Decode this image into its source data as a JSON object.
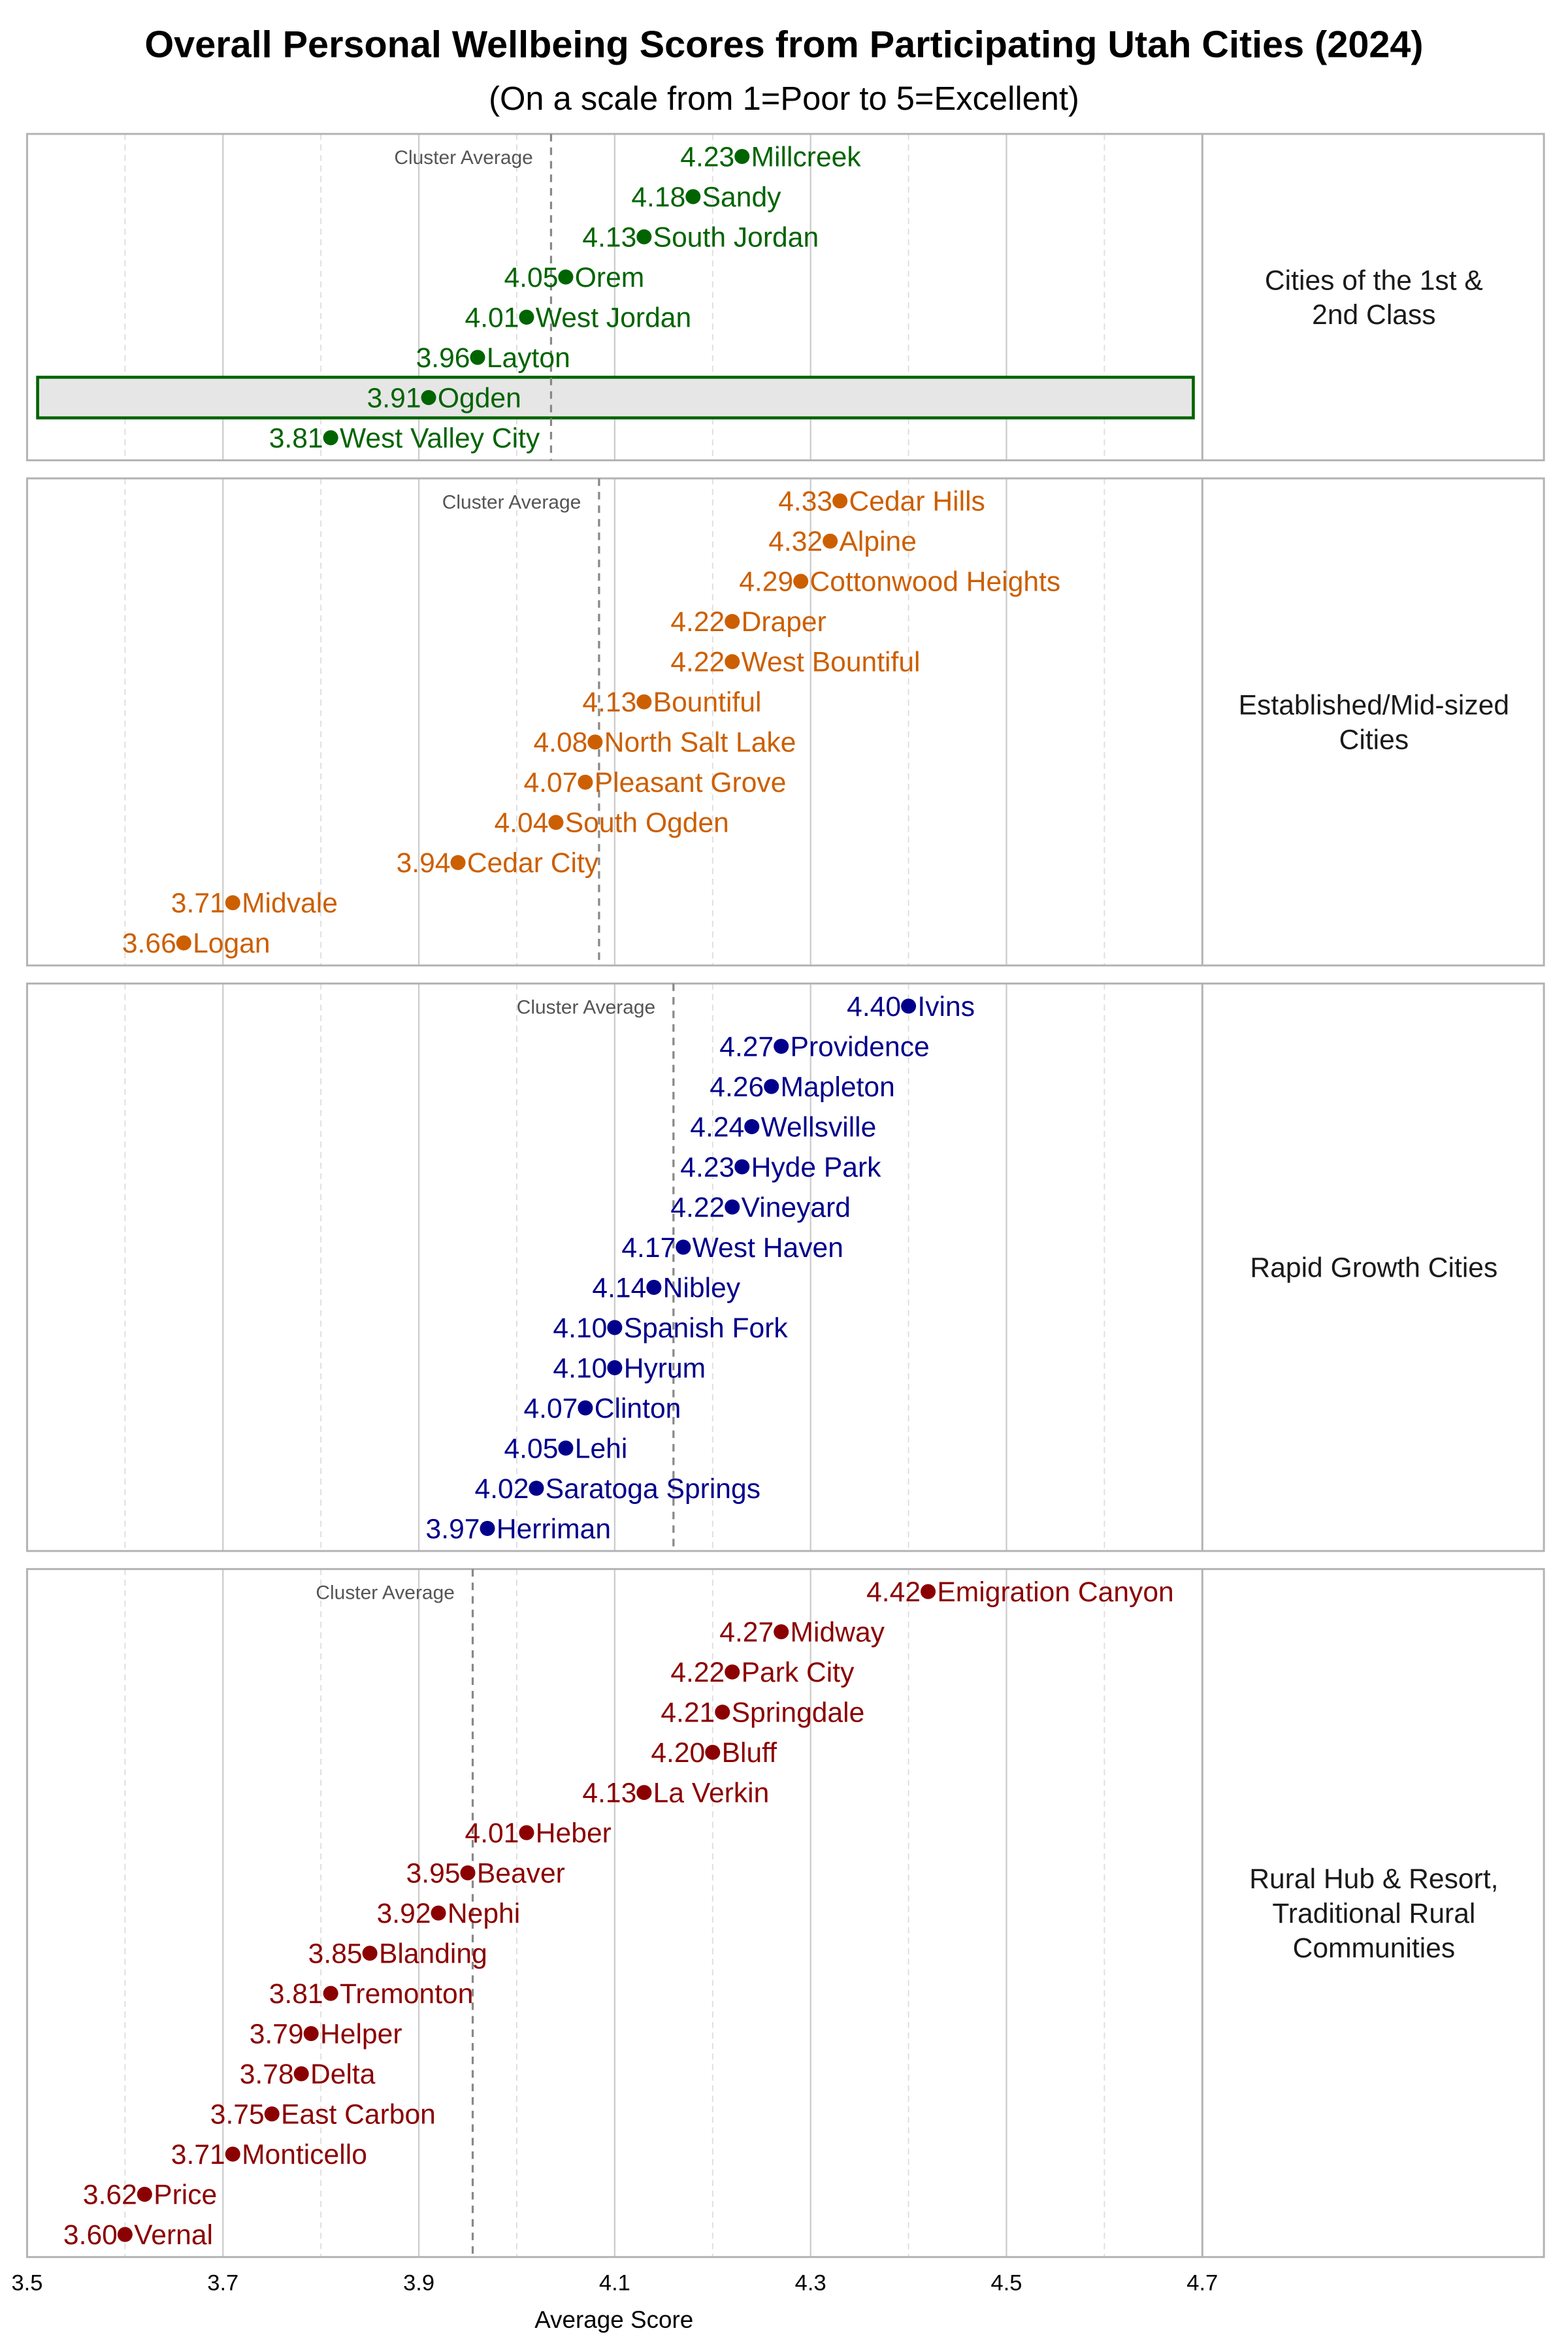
{
  "chart_data": {
    "type": "scatter",
    "title": "Overall Personal Wellbeing Scores from Participating Utah Cities (2024)",
    "subtitle": "(On a scale from 1=Poor to 5=Excellent)",
    "xlabel": "Average Score",
    "xlim": [
      3.5,
      4.7
    ],
    "xticks": [
      "3.5",
      "3.7",
      "3.9",
      "4.1",
      "4.3",
      "4.5",
      "4.7"
    ],
    "grid": true,
    "average_label": "Cluster Average",
    "panels": [
      {
        "name": "Cities of the 1st & 2nd Class",
        "label_lines": [
          "Cities of the 1st &",
          "2nd Class"
        ],
        "color": "#006400",
        "cluster_average": 4.035,
        "highlight": "Ogden",
        "points": [
          {
            "city": "Millcreek",
            "value": 4.23
          },
          {
            "city": "Sandy",
            "value": 4.18
          },
          {
            "city": "South Jordan",
            "value": 4.13
          },
          {
            "city": "Orem",
            "value": 4.05
          },
          {
            "city": "West Jordan",
            "value": 4.01
          },
          {
            "city": "Layton",
            "value": 3.96
          },
          {
            "city": "Ogden",
            "value": 3.91
          },
          {
            "city": "West Valley City",
            "value": 3.81
          }
        ]
      },
      {
        "name": "Established/Mid-sized Cities",
        "label_lines": [
          "Established/Mid-sized",
          "Cities"
        ],
        "color": "#cc5f00",
        "cluster_average": 4.084,
        "points": [
          {
            "city": "Cedar Hills",
            "value": 4.33
          },
          {
            "city": "Alpine",
            "value": 4.32
          },
          {
            "city": "Cottonwood Heights",
            "value": 4.29
          },
          {
            "city": "Draper",
            "value": 4.22
          },
          {
            "city": "West Bountiful",
            "value": 4.22
          },
          {
            "city": "Bountiful",
            "value": 4.13
          },
          {
            "city": "North Salt Lake",
            "value": 4.08
          },
          {
            "city": "Pleasant Grove",
            "value": 4.07
          },
          {
            "city": "South Ogden",
            "value": 4.04
          },
          {
            "city": "Cedar City",
            "value": 3.94
          },
          {
            "city": "Midvale",
            "value": 3.71
          },
          {
            "city": "Logan",
            "value": 3.66
          }
        ]
      },
      {
        "name": "Rapid Growth Cities",
        "label_lines": [
          "Rapid Growth Cities"
        ],
        "color": "#00008b",
        "cluster_average": 4.16,
        "points": [
          {
            "city": "Ivins",
            "value": 4.4
          },
          {
            "city": "Providence",
            "value": 4.27
          },
          {
            "city": "Mapleton",
            "value": 4.26
          },
          {
            "city": "Wellsville",
            "value": 4.24
          },
          {
            "city": "Hyde Park",
            "value": 4.23
          },
          {
            "city": "Vineyard",
            "value": 4.22
          },
          {
            "city": "West Haven",
            "value": 4.17
          },
          {
            "city": "Nibley",
            "value": 4.14
          },
          {
            "city": "Spanish Fork",
            "value": 4.1
          },
          {
            "city": "Hyrum",
            "value": 4.1
          },
          {
            "city": "Clinton",
            "value": 4.07
          },
          {
            "city": "Lehi",
            "value": 4.05
          },
          {
            "city": "Saratoga Springs",
            "value": 4.02
          },
          {
            "city": "Herriman",
            "value": 3.97
          }
        ]
      },
      {
        "name": "Rural Hub & Resort, Traditional Rural Communities",
        "label_lines": [
          "Rural Hub & Resort,",
          "Traditional Rural",
          "Communities"
        ],
        "color": "#8b0000",
        "cluster_average": 3.955,
        "points": [
          {
            "city": "Emigration Canyon",
            "value": 4.42
          },
          {
            "city": "Midway",
            "value": 4.27
          },
          {
            "city": "Park City",
            "value": 4.22
          },
          {
            "city": "Springdale",
            "value": 4.21
          },
          {
            "city": "Bluff",
            "value": 4.2
          },
          {
            "city": "La Verkin",
            "value": 4.13
          },
          {
            "city": "Heber",
            "value": 4.01
          },
          {
            "city": "Beaver",
            "value": 3.95
          },
          {
            "city": "Nephi",
            "value": 3.92
          },
          {
            "city": "Blanding",
            "value": 3.85
          },
          {
            "city": "Tremonton",
            "value": 3.81
          },
          {
            "city": "Helper",
            "value": 3.79
          },
          {
            "city": "Delta",
            "value": 3.78
          },
          {
            "city": "East Carbon",
            "value": 3.75
          },
          {
            "city": "Monticello",
            "value": 3.71
          },
          {
            "city": "Price",
            "value": 3.62
          },
          {
            "city": "Vernal",
            "value": 3.6
          }
        ]
      }
    ]
  }
}
